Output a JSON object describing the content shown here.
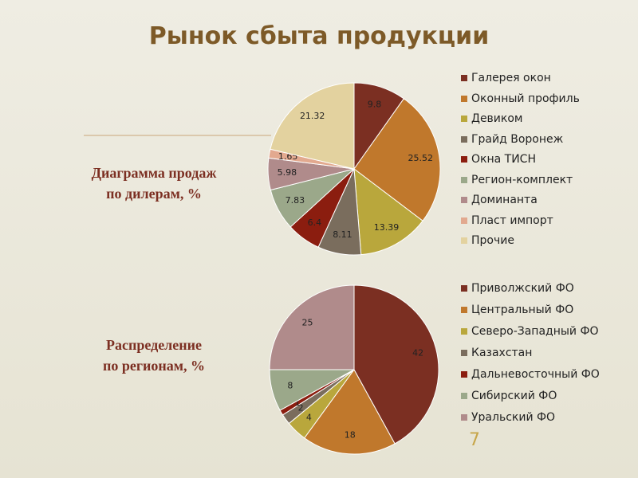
{
  "title": "Рынок сбыта продукции",
  "page_number": "7",
  "chart_data": [
    {
      "type": "pie",
      "title": "Диаграмма продаж\nпо дилерам, %",
      "categories": [
        "Галерея окон",
        "Оконный профиль",
        "Девиком",
        "Грайд Воронеж",
        "Окна ТИСН",
        "Регион-комплект",
        "Доминанта",
        "Пласт импорт",
        "Прочие"
      ],
      "values": [
        9.8,
        25.52,
        13.39,
        8.11,
        6.4,
        7.83,
        5.98,
        1.65,
        21.32
      ],
      "colors": [
        "#7b2f22",
        "#c0782c",
        "#b9a73c",
        "#7a6d5d",
        "#8b1d0f",
        "#9ba88a",
        "#b08b8b",
        "#e2a98f",
        "#e3d29f"
      ]
    },
    {
      "type": "pie",
      "title": "Распределение\nпо регионам, %",
      "categories": [
        "Приволжский ФО",
        "Центральный ФО",
        "Северо-Западный ФО",
        "Казахстан",
        "Дальневосточный ФО",
        "Сибирский ФО",
        "Уральский ФО"
      ],
      "values": [
        42,
        18,
        4,
        2,
        1,
        8,
        25
      ],
      "colors": [
        "#7b2f22",
        "#c0782c",
        "#b9a73c",
        "#7a6d5d",
        "#8b1d0f",
        "#9ba88a",
        "#b08b8b"
      ]
    }
  ]
}
